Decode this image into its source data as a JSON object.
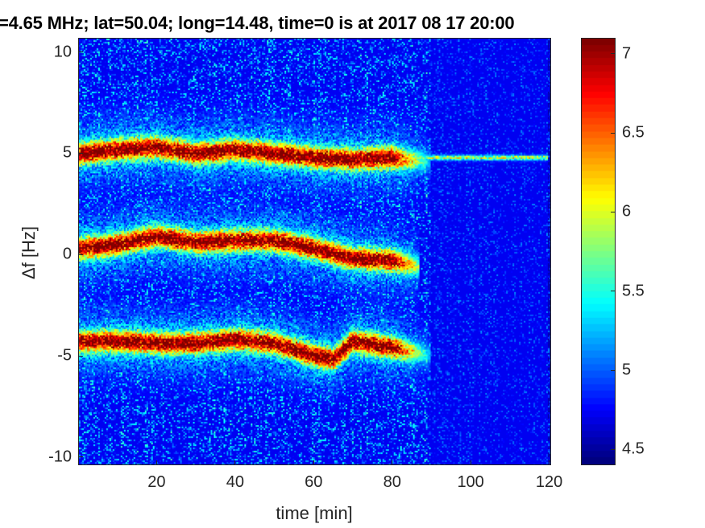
{
  "chart_data": {
    "type": "heatmap",
    "title": "=4.65 MHz;  lat=50.04; long=14.48, time=0 is at 2017 08 17 20:00",
    "xlabel": "time [min]",
    "ylabel": "Δf [Hz]",
    "xlim": [
      0,
      120.5
    ],
    "ylim": [
      -10.4,
      10.7
    ],
    "xticks": [
      20,
      40,
      60,
      80,
      100,
      120
    ],
    "xtick_labels": [
      "20",
      "40",
      "60",
      "80",
      "100",
      "120"
    ],
    "yticks": [
      10,
      5,
      0,
      -5,
      -10
    ],
    "ytick_labels": [
      "10",
      "5",
      "0",
      "-5",
      "-10"
    ],
    "colormap": "jet",
    "clim": [
      4.4,
      7.1
    ],
    "colorbar_ticks": [
      7,
      6.5,
      6,
      5.5,
      5,
      4.5
    ],
    "colorbar_tick_labels": [
      "7",
      "6.5",
      "6",
      "5.5",
      "5",
      "4.5"
    ],
    "background_level": 4.7,
    "tracks": [
      {
        "name": "upper",
        "peak": 7.0,
        "t": [
          0,
          10,
          20,
          30,
          40,
          50,
          60,
          70,
          80,
          90
        ],
        "f": [
          5.0,
          5.2,
          5.3,
          5.0,
          5.2,
          5.0,
          4.8,
          4.7,
          4.8,
          4.6
        ]
      },
      {
        "name": "middle",
        "peak": 7.0,
        "t": [
          0,
          10,
          20,
          30,
          40,
          50,
          60,
          70,
          80,
          87
        ],
        "f": [
          0.3,
          0.5,
          0.9,
          0.6,
          0.7,
          0.7,
          0.3,
          -0.2,
          -0.3,
          -0.6
        ]
      },
      {
        "name": "lower",
        "peak": 7.0,
        "t": [
          0,
          10,
          20,
          30,
          40,
          50,
          60,
          65,
          70,
          80,
          90
        ],
        "f": [
          -4.3,
          -4.3,
          -4.4,
          -4.4,
          -4.2,
          -4.4,
          -5.0,
          -5.2,
          -4.3,
          -4.6,
          -5.0
        ]
      },
      {
        "name": "carrier-line",
        "peak": 5.6,
        "t": [
          88,
          120
        ],
        "f": [
          4.8,
          4.8
        ]
      }
    ]
  }
}
